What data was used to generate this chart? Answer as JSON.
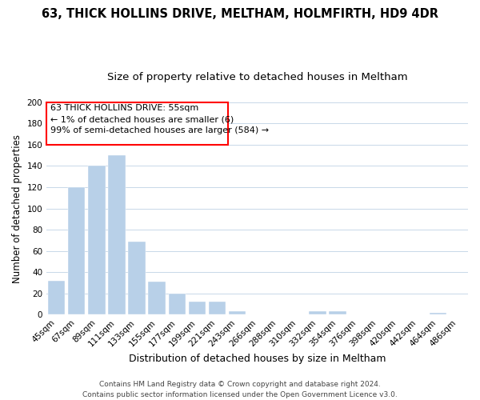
{
  "title": "63, THICK HOLLINS DRIVE, MELTHAM, HOLMFIRTH, HD9 4DR",
  "subtitle": "Size of property relative to detached houses in Meltham",
  "xlabel": "Distribution of detached houses by size in Meltham",
  "ylabel": "Number of detached properties",
  "bar_labels": [
    "45sqm",
    "67sqm",
    "89sqm",
    "111sqm",
    "133sqm",
    "155sqm",
    "177sqm",
    "199sqm",
    "221sqm",
    "243sqm",
    "266sqm",
    "288sqm",
    "310sqm",
    "332sqm",
    "354sqm",
    "376sqm",
    "398sqm",
    "420sqm",
    "442sqm",
    "464sqm",
    "486sqm"
  ],
  "bar_values": [
    32,
    120,
    140,
    150,
    69,
    31,
    20,
    12,
    12,
    3,
    0,
    0,
    0,
    3,
    3,
    0,
    0,
    0,
    0,
    2,
    0
  ],
  "bar_color": "#b8d0e8",
  "annotation_line1": "63 THICK HOLLINS DRIVE: 55sqm",
  "annotation_line2": "← 1% of detached houses are smaller (6)",
  "annotation_line3": "99% of semi-detached houses are larger (584) →",
  "ylim": [
    0,
    200
  ],
  "yticks": [
    0,
    20,
    40,
    60,
    80,
    100,
    120,
    140,
    160,
    180,
    200
  ],
  "title_fontsize": 10.5,
  "subtitle_fontsize": 9.5,
  "xlabel_fontsize": 9,
  "ylabel_fontsize": 8.5,
  "tick_fontsize": 7.5,
  "annotation_fontsize": 8,
  "footer_fontsize": 6.5,
  "footer_line1": "Contains HM Land Registry data © Crown copyright and database right 2024.",
  "footer_line2": "Contains public sector information licensed under the Open Government Licence v3.0.",
  "background_color": "#ffffff",
  "grid_color": "#c8d8e8"
}
